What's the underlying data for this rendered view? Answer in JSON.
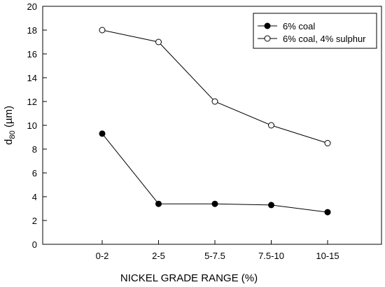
{
  "chart_data": {
    "type": "line",
    "categories": [
      "0-2",
      "2-5",
      "5-7.5",
      "7.5-10",
      "10-15"
    ],
    "xlabel": "NICKEL GRADE RANGE (%)",
    "ylabel": {
      "base": "d",
      "sub": "80",
      "rest": " (µm)"
    },
    "ylim": [
      0,
      20
    ],
    "yticks": [
      0,
      2,
      4,
      6,
      8,
      10,
      12,
      14,
      16,
      18,
      20
    ],
    "grid": false,
    "legend_position": "top-right",
    "series": [
      {
        "name": "6% coal",
        "marker": "filled-circle",
        "values": [
          9.3,
          3.4,
          3.4,
          3.3,
          2.7
        ]
      },
      {
        "name": "6% coal, 4% sulphur",
        "marker": "open-circle",
        "values": [
          18.0,
          17.0,
          12.0,
          10.0,
          8.5
        ]
      }
    ]
  }
}
